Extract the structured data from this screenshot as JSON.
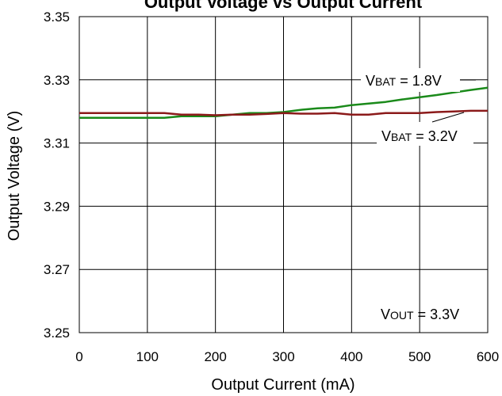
{
  "chart_data": {
    "type": "line",
    "title": "Output Voltage vs Output Current",
    "xlabel": "Output Current (mA)",
    "ylabel": "Output Voltage (V)",
    "xlim": [
      0,
      600
    ],
    "ylim": [
      3.25,
      3.35
    ],
    "xticks": [
      0,
      100,
      200,
      300,
      400,
      500,
      600
    ],
    "yticks": [
      "3.25",
      "3.27",
      "3.29",
      "3.31",
      "3.33",
      "3.35"
    ],
    "grid": true,
    "series": [
      {
        "name": "VBAT = 1.8V",
        "color": "#1a8a1a",
        "x": [
          0,
          25,
          50,
          75,
          100,
          125,
          150,
          175,
          200,
          225,
          250,
          275,
          300,
          325,
          350,
          375,
          400,
          425,
          450,
          475,
          500,
          525,
          550,
          575,
          600
        ],
        "y": [
          3.318,
          3.318,
          3.318,
          3.318,
          3.318,
          3.318,
          3.3185,
          3.3185,
          3.3185,
          3.319,
          3.3195,
          3.3195,
          3.3198,
          3.3205,
          3.321,
          3.3212,
          3.322,
          3.3225,
          3.323,
          3.3238,
          3.3245,
          3.3252,
          3.326,
          3.3268,
          3.3275
        ]
      },
      {
        "name": "VBAT = 3.2V",
        "color": "#8b1a1a",
        "x": [
          0,
          25,
          50,
          75,
          100,
          125,
          150,
          175,
          200,
          225,
          250,
          275,
          300,
          325,
          350,
          375,
          400,
          425,
          450,
          475,
          500,
          525,
          550,
          575,
          600
        ],
        "y": [
          3.3195,
          3.3195,
          3.3195,
          3.3195,
          3.3195,
          3.3195,
          3.319,
          3.319,
          3.3188,
          3.319,
          3.319,
          3.3192,
          3.3195,
          3.3193,
          3.3193,
          3.3195,
          3.319,
          3.319,
          3.3195,
          3.3195,
          3.3195,
          3.3198,
          3.32,
          3.3202,
          3.3202
        ]
      }
    ],
    "annotations": [
      {
        "main": "V",
        "sub": "BAT",
        "rest": " = 1.8V"
      },
      {
        "main": "V",
        "sub": "BAT",
        "rest": " = 3.2V"
      },
      {
        "main": "V",
        "sub": "OUT",
        "rest": " = 3.3V"
      }
    ]
  }
}
